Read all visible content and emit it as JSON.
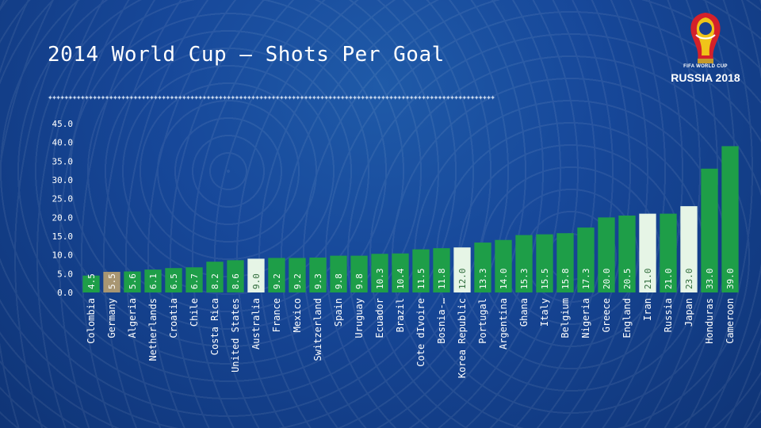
{
  "slide": {
    "title": "2014 World Cup –  Shots Per Goal",
    "logo_line1": "FIFA WORLD CUP",
    "logo_line2": "RUSSIA 2018"
  },
  "colors": {
    "default_bar": "#1e9e48",
    "highlight_germany": "#a89672",
    "highlight_white": "#e6f5e6",
    "text": "#ffffff"
  },
  "chart_data": {
    "type": "bar",
    "title": "",
    "xlabel": "",
    "ylabel": "",
    "ylim": [
      0,
      45
    ],
    "yticks": [
      "0.0",
      "5.0",
      "10.0",
      "15.0",
      "20.0",
      "25.0",
      "30.0",
      "35.0",
      "40.0",
      "45.0"
    ],
    "grid": false,
    "legend": "none",
    "categories": [
      "Colombia",
      "Germany",
      "Algeria",
      "Netherlands",
      "Croatia",
      "Chile",
      "Costa Rica",
      "United States",
      "Australia",
      "France",
      "Mexico",
      "Switzerland",
      "Spain",
      "Uruguay",
      "Ecuador",
      "Brazil",
      "Cote dIvoire",
      "Bosnia-…",
      "Korea Republic",
      "Portugal",
      "Argentina",
      "Ghana",
      "Italy",
      "Belgium",
      "Nigeria",
      "Greece",
      "England",
      "Iran",
      "Russia",
      "Japan",
      "Honduras",
      "Cameroon"
    ],
    "values": [
      4.5,
      5.5,
      5.6,
      6.1,
      6.5,
      6.7,
      8.2,
      8.6,
      9.0,
      9.2,
      9.2,
      9.3,
      9.8,
      9.8,
      10.3,
      10.4,
      11.5,
      11.8,
      12.0,
      13.3,
      14.0,
      15.3,
      15.5,
      15.8,
      17.3,
      20.0,
      20.5,
      21.0,
      21.0,
      23.0,
      33.0,
      39.0
    ],
    "data_labels": [
      "4.5",
      "5.5",
      "5.6",
      "6.1",
      "6.5",
      "6.7",
      "8.2",
      "8.6",
      "9.0",
      "9.2",
      "9.2",
      "9.3",
      "9.8",
      "9.8",
      "10.3",
      "10.4",
      "11.5",
      "11.8",
      "12.0",
      "13.3",
      "14.0",
      "15.3",
      "15.5",
      "15.8",
      "17.3",
      "20.0",
      "20.5",
      "21.0",
      "21.0",
      "23.0",
      "33.0",
      "39.0"
    ],
    "highlight": {
      "Germany": "germany",
      "Australia": "white",
      "Korea Republic": "white",
      "Iran": "white",
      "Japan": "white"
    }
  }
}
